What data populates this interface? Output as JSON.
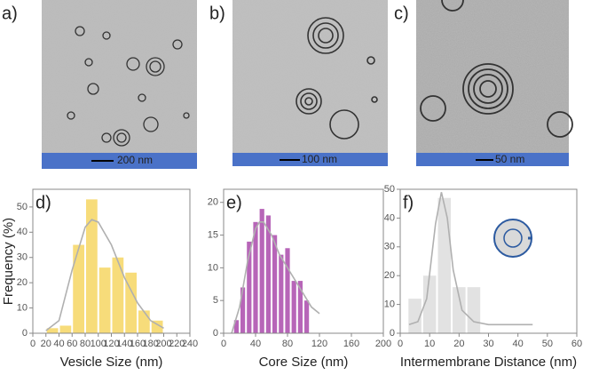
{
  "micrographs": [
    {
      "label": "a)",
      "scale": "200 nm"
    },
    {
      "label": "b)",
      "scale": "100 nm"
    },
    {
      "label": "c)",
      "scale": "50 nm"
    }
  ],
  "chart_data": [
    {
      "type": "histogram",
      "panel_label": "d)",
      "xlabel": "Vesicle Size (nm)",
      "ylabel": "Frequency (%)",
      "bins": [
        20,
        40,
        60,
        80,
        100,
        120,
        140,
        160,
        180,
        200
      ],
      "values": [
        2,
        3,
        35,
        53,
        26,
        30,
        24,
        9,
        5
      ],
      "color": "#f7dc7a",
      "fit_x": [
        20,
        40,
        60,
        80,
        90,
        100,
        120,
        140,
        160,
        180,
        200
      ],
      "fit_y": [
        1,
        5,
        25,
        42,
        45,
        44,
        35,
        22,
        12,
        5,
        2
      ],
      "fit_color": "#b0b0b0",
      "xlim": [
        0,
        240
      ],
      "xticks": [
        0,
        20,
        40,
        60,
        80,
        100,
        120,
        140,
        160,
        180,
        200,
        220,
        240
      ],
      "ylim": [
        0,
        57
      ],
      "yticks": [
        0,
        10,
        20,
        30,
        40,
        50
      ]
    },
    {
      "type": "histogram",
      "panel_label": "e)",
      "xlabel": "Core Size (nm)",
      "bins": [
        12,
        20,
        28,
        36,
        44,
        52,
        60,
        68,
        76,
        84,
        92,
        100,
        108
      ],
      "values": [
        2,
        7,
        14,
        17,
        19,
        18,
        15,
        12,
        13,
        8,
        8,
        5
      ],
      "color": "#b765b8",
      "fit_x": [
        10,
        20,
        30,
        40,
        45,
        50,
        60,
        70,
        80,
        90,
        100,
        110,
        120
      ],
      "fit_y": [
        0,
        4,
        11,
        16,
        17,
        17,
        15,
        12,
        10,
        8,
        6,
        4,
        3
      ],
      "fit_color": "#b0b0b0",
      "xlim": [
        0,
        200
      ],
      "xticks": [
        0,
        40,
        80,
        120,
        160,
        200
      ],
      "ylim": [
        0,
        22
      ],
      "yticks": [
        0,
        5,
        10,
        15,
        20
      ]
    },
    {
      "type": "histogram",
      "panel_label": "f)",
      "xlabel": "Intermembrane Distance (nm)",
      "bins": [
        2.5,
        7.5,
        12.5,
        17.5,
        22.5,
        27.5
      ],
      "values": [
        12,
        20,
        47,
        16,
        16
      ],
      "color": "#e2e2e2",
      "fit_x": [
        3,
        6,
        9,
        12,
        14,
        16,
        18,
        21,
        25,
        30,
        45
      ],
      "fit_y": [
        3,
        4,
        12,
        38,
        49,
        40,
        22,
        8,
        4,
        3,
        3
      ],
      "fit_color": "#b0b0b0",
      "xlim": [
        0,
        60
      ],
      "xticks": [
        0,
        10,
        20,
        30,
        40,
        50,
        60
      ],
      "ylim": [
        0,
        50
      ],
      "yticks": [
        0,
        10,
        20,
        30,
        40,
        50
      ]
    }
  ]
}
